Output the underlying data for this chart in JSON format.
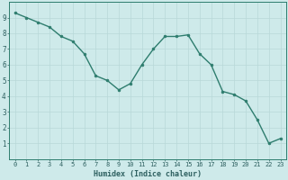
{
  "x": [
    0,
    1,
    2,
    3,
    4,
    5,
    6,
    7,
    8,
    9,
    10,
    11,
    12,
    13,
    14,
    15,
    16,
    17,
    18,
    19,
    20,
    21,
    22,
    23
  ],
  "y": [
    9.3,
    9.0,
    8.7,
    8.4,
    7.8,
    7.5,
    6.7,
    5.3,
    5.0,
    4.4,
    4.8,
    6.0,
    7.0,
    7.8,
    7.8,
    7.9,
    6.7,
    6.0,
    4.3,
    4.1,
    3.7,
    2.5,
    1.0,
    1.3
  ],
  "xlabel": "Humidex (Indice chaleur)",
  "ylim": [
    0,
    10
  ],
  "xlim_min": -0.5,
  "xlim_max": 23.5,
  "line_color": "#2e7d6e",
  "marker_color": "#2e7d6e",
  "bg_color": "#ceeaea",
  "grid_color": "#b8d8d8",
  "tick_label_color": "#2e6060",
  "spine_color": "#2e7d6e",
  "xlabel_color": "#2e6060",
  "yticks": [
    1,
    2,
    3,
    4,
    5,
    6,
    7,
    8,
    9
  ],
  "xticks": [
    0,
    1,
    2,
    3,
    4,
    5,
    6,
    7,
    8,
    9,
    10,
    11,
    12,
    13,
    14,
    15,
    16,
    17,
    18,
    19,
    20,
    21,
    22,
    23
  ],
  "tick_fontsize": 5.0,
  "xlabel_fontsize": 6.0
}
